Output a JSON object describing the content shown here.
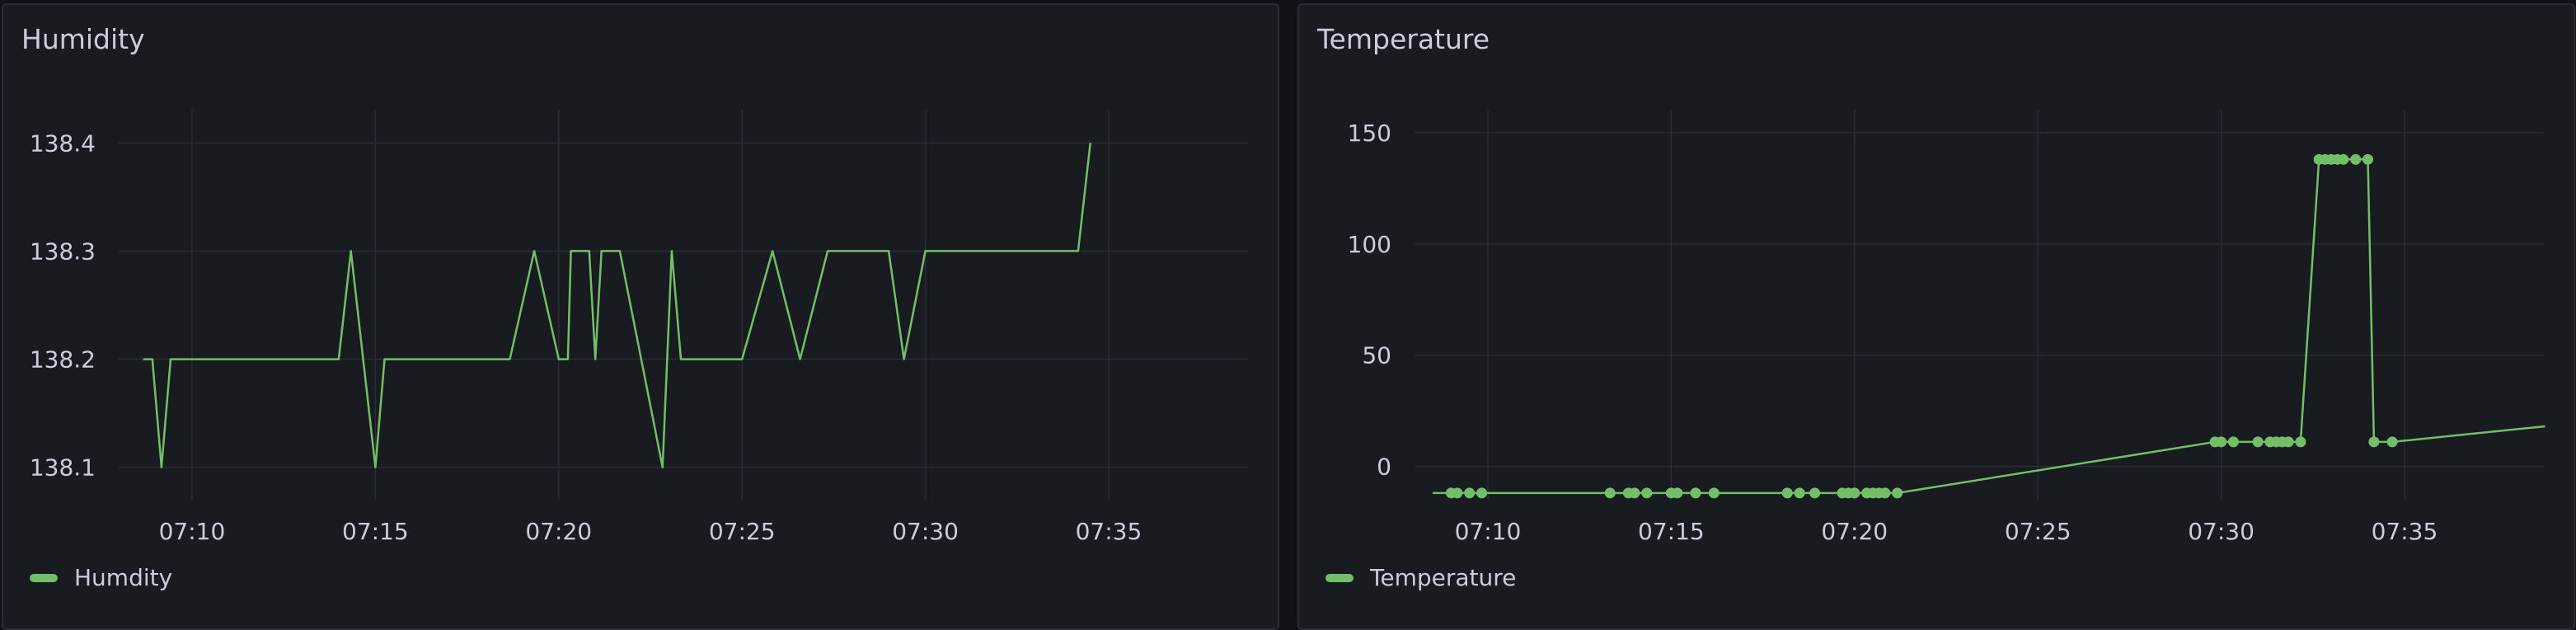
{
  "panels": [
    {
      "title": "Humidity",
      "legend": "Humdity",
      "show_points": false
    },
    {
      "title": "Temperature",
      "legend": "Temperature",
      "show_points": true
    }
  ],
  "colors": {
    "series": "#73bf69",
    "panel_bg": "#181b1f",
    "page_bg": "#111217",
    "grid": "#2a2d33",
    "text": "#ccccdc"
  },
  "chart_data": [
    {
      "type": "line",
      "title": "Humidity",
      "xlabel": "",
      "ylabel": "",
      "x_ticks": [
        "07:10",
        "07:15",
        "07:20",
        "07:25",
        "07:30",
        "07:35"
      ],
      "x_tick_minutes": [
        10,
        15,
        20,
        25,
        30,
        35
      ],
      "xlim_minutes": [
        8.0,
        38.8
      ],
      "y_ticks": [
        "138.1",
        "138.2",
        "138.3",
        "138.4"
      ],
      "y_tick_values": [
        138.1,
        138.2,
        138.3,
        138.4
      ],
      "ylim": [
        138.07,
        138.43
      ],
      "grid": true,
      "legend_position": "bottom-left",
      "series": [
        {
          "name": "Humdity",
          "color": "#73bf69",
          "x": [
            "07:08:40",
            "07:08:55",
            "07:09:10",
            "07:09:25",
            "07:14:00",
            "07:14:20",
            "07:15:00",
            "07:15:15",
            "07:18:40",
            "07:19:20",
            "07:20:00",
            "07:20:15",
            "07:20:20",
            "07:20:50",
            "07:21:00",
            "07:21:10",
            "07:21:40",
            "07:22:50",
            "07:23:05",
            "07:23:20",
            "07:25:00",
            "07:25:50",
            "07:26:35",
            "07:27:20",
            "07:29:00",
            "07:29:25",
            "07:30:00",
            "07:34:10",
            "07:34:30"
          ],
          "y": [
            138.2,
            138.2,
            138.1,
            138.2,
            138.2,
            138.3,
            138.1,
            138.2,
            138.2,
            138.3,
            138.2,
            138.2,
            138.3,
            138.3,
            138.2,
            138.3,
            138.3,
            138.1,
            138.3,
            138.2,
            138.2,
            138.3,
            138.2,
            138.3,
            138.3,
            138.2,
            138.3,
            138.3,
            138.4
          ]
        }
      ]
    },
    {
      "type": "line",
      "title": "Temperature",
      "xlabel": "",
      "ylabel": "",
      "x_ticks": [
        "07:10",
        "07:15",
        "07:20",
        "07:25",
        "07:30",
        "07:35"
      ],
      "x_tick_minutes": [
        10,
        15,
        20,
        25,
        30,
        35
      ],
      "xlim_minutes": [
        8.0,
        38.8
      ],
      "y_ticks": [
        "0",
        "50",
        "100",
        "150"
      ],
      "y_tick_values": [
        0,
        50,
        100,
        150
      ],
      "ylim": [
        -15,
        160
      ],
      "grid": true,
      "legend_position": "bottom-left",
      "series": [
        {
          "name": "Temperature",
          "color": "#73bf69",
          "x": [
            "07:08:30",
            "07:09:00",
            "07:09:10",
            "07:09:30",
            "07:09:50",
            "07:13:20",
            "07:13:50",
            "07:14:00",
            "07:14:20",
            "07:15:00",
            "07:15:10",
            "07:15:40",
            "07:16:10",
            "07:18:10",
            "07:18:30",
            "07:18:55",
            "07:19:40",
            "07:19:50",
            "07:20:00",
            "07:20:20",
            "07:20:30",
            "07:20:40",
            "07:20:50",
            "07:21:10",
            "07:29:50",
            "07:30:00",
            "07:30:20",
            "07:31:00",
            "07:31:20",
            "07:31:30",
            "07:31:40",
            "07:31:50",
            "07:32:10",
            "07:32:40",
            "07:32:50",
            "07:33:00",
            "07:33:10",
            "07:33:20",
            "07:33:40",
            "07:34:00",
            "07:34:10",
            "07:34:40",
            "07:38:50"
          ],
          "y": [
            -12,
            -12,
            -12,
            -12,
            -12,
            -12,
            -12,
            -12,
            -12,
            -12,
            -12,
            -12,
            -12,
            -12,
            -12,
            -12,
            -12,
            -12,
            -12,
            -12,
            -12,
            -12,
            -12,
            -12,
            11,
            11,
            11,
            11,
            11,
            11,
            11,
            11,
            11,
            138,
            138,
            138,
            138,
            138,
            138,
            138,
            11,
            11,
            18
          ],
          "points": [
            false,
            true,
            true,
            true,
            true,
            true,
            true,
            true,
            true,
            true,
            true,
            true,
            true,
            true,
            true,
            true,
            true,
            true,
            true,
            true,
            true,
            true,
            true,
            true,
            true,
            true,
            true,
            true,
            true,
            true,
            true,
            true,
            true,
            true,
            true,
            true,
            true,
            true,
            true,
            true,
            true,
            true,
            false
          ]
        }
      ]
    }
  ]
}
